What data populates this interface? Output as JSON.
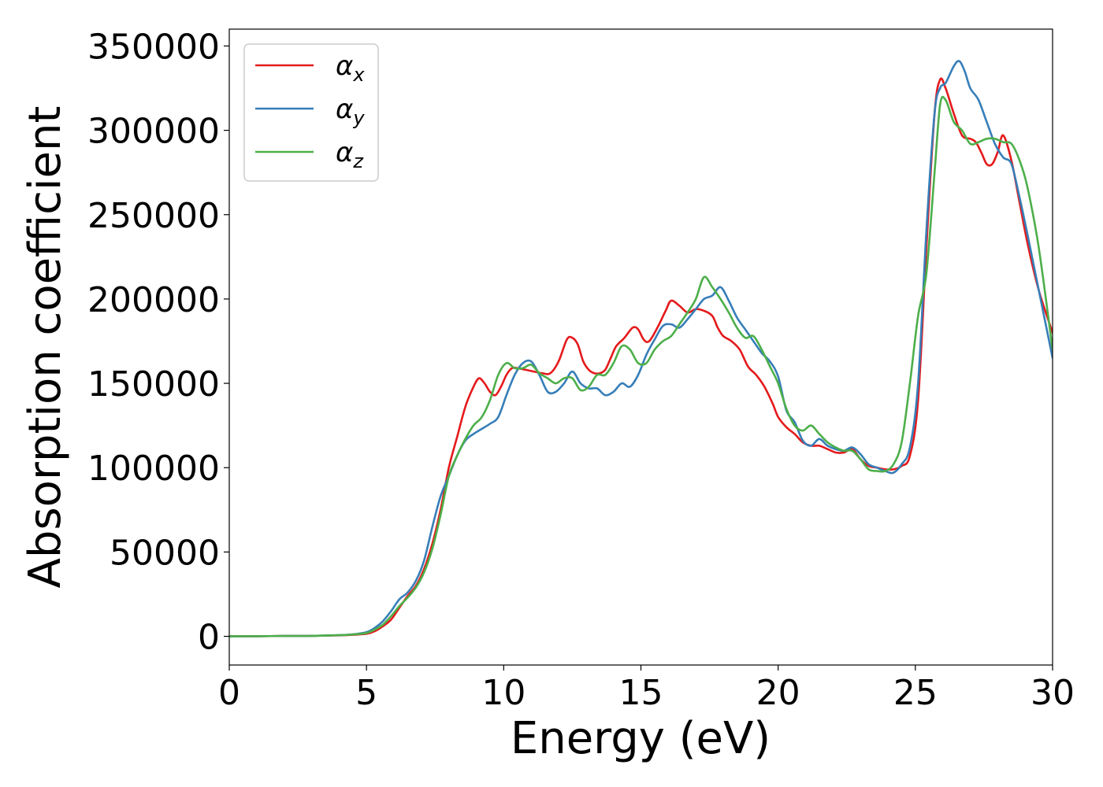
{
  "chart_data": {
    "type": "line",
    "title": "",
    "xlabel": "Energy (eV)",
    "ylabel": "Absorption coefficient",
    "xlim": [
      0,
      30
    ],
    "ylim": [
      -17000,
      360000
    ],
    "xticks": [
      0,
      5,
      10,
      15,
      20,
      25,
      30
    ],
    "yticks": [
      0,
      50000,
      100000,
      150000,
      200000,
      250000,
      300000,
      350000
    ],
    "grid": false,
    "legend_position": "top-left",
    "series": [
      {
        "name": "α",
        "subscript": "x",
        "color": "#e41a1c",
        "x": [
          0,
          1,
          2,
          3,
          4,
          4.5,
          5,
          5.3,
          5.6,
          5.9,
          6.2,
          6.5,
          6.8,
          7.1,
          7.4,
          7.7,
          8,
          8.3,
          8.6,
          8.9,
          9.1,
          9.3,
          9.5,
          9.7,
          9.9,
          10.1,
          10.3,
          10.5,
          10.8,
          11.1,
          11.4,
          11.7,
          12,
          12.3,
          12.5,
          12.7,
          12.9,
          13.1,
          13.3,
          13.5,
          13.7,
          13.9,
          14.1,
          14.4,
          14.7,
          14.9,
          15.1,
          15.3,
          15.6,
          15.9,
          16.1,
          16.4,
          16.7,
          17,
          17.3,
          17.6,
          17.8,
          18,
          18.3,
          18.6,
          18.9,
          19.2,
          19.5,
          19.8,
          20,
          20.3,
          20.6,
          20.9,
          21.2,
          21.5,
          21.8,
          22.1,
          22.4,
          22.7,
          23,
          23.3,
          23.6,
          23.9,
          24.2,
          24.5,
          24.8,
          25.1,
          25.4,
          25.7,
          25.9,
          26.1,
          26.4,
          26.7,
          27,
          27.2,
          27.4,
          27.6,
          27.8,
          28,
          28.2,
          28.5,
          28.8,
          29.1,
          29.5,
          30
        ],
        "values": [
          0,
          100,
          200,
          300,
          600,
          900,
          1500,
          3000,
          6000,
          10000,
          17000,
          24000,
          30000,
          40000,
          55000,
          75000,
          100000,
          118000,
          136000,
          148000,
          153000,
          150000,
          145000,
          143000,
          148000,
          155000,
          159000,
          159000,
          158000,
          157000,
          156000,
          156000,
          163000,
          176000,
          177000,
          173000,
          163000,
          158000,
          156000,
          156000,
          158000,
          165000,
          172000,
          177000,
          183000,
          182000,
          176000,
          175000,
          183000,
          193000,
          199000,
          196000,
          192000,
          194000,
          193000,
          190000,
          183000,
          178000,
          175000,
          170000,
          160000,
          155000,
          148000,
          138000,
          130000,
          124000,
          120000,
          115000,
          113000,
          113000,
          111000,
          109000,
          109000,
          111000,
          105000,
          101000,
          100000,
          99000,
          99000,
          101000,
          107000,
          140000,
          230000,
          310000,
          330000,
          325000,
          310000,
          297000,
          295000,
          293000,
          287000,
          280000,
          280000,
          287000,
          297000,
          282000,
          257000,
          232000,
          205000,
          180000
        ]
      },
      {
        "name": "α",
        "subscript": "y",
        "color": "#377eb8",
        "x": [
          0,
          1,
          2,
          3,
          4,
          4.5,
          5,
          5.3,
          5.6,
          5.9,
          6.2,
          6.5,
          6.8,
          7.1,
          7.4,
          7.7,
          8,
          8.3,
          8.6,
          8.9,
          9.2,
          9.5,
          9.8,
          10.1,
          10.4,
          10.7,
          11,
          11.3,
          11.6,
          11.9,
          12.2,
          12.5,
          12.8,
          13.1,
          13.4,
          13.7,
          14,
          14.3,
          14.6,
          14.9,
          15.2,
          15.5,
          15.8,
          16.1,
          16.4,
          16.7,
          17,
          17.3,
          17.6,
          17.9,
          18.2,
          18.5,
          18.8,
          19.1,
          19.4,
          19.7,
          20,
          20.3,
          20.6,
          20.9,
          21.2,
          21.5,
          21.8,
          22.1,
          22.4,
          22.7,
          23,
          23.3,
          23.6,
          23.9,
          24.2,
          24.5,
          24.8,
          25.1,
          25.4,
          25.7,
          25.9,
          26.1,
          26.4,
          26.6,
          26.8,
          27,
          27.3,
          27.6,
          27.9,
          28.2,
          28.5,
          28.8,
          29.1,
          29.5,
          30
        ],
        "values": [
          0,
          100,
          200,
          300,
          700,
          1200,
          2500,
          5000,
          9000,
          15000,
          22000,
          26000,
          33000,
          45000,
          65000,
          83000,
          95000,
          107000,
          116000,
          120000,
          123000,
          126000,
          130000,
          143000,
          155000,
          162000,
          163000,
          155000,
          145000,
          145000,
          150000,
          157000,
          150000,
          147000,
          147000,
          143000,
          145000,
          150000,
          148000,
          155000,
          167000,
          176000,
          184000,
          185000,
          183000,
          188000,
          194000,
          200000,
          202000,
          207000,
          199000,
          189000,
          182000,
          175000,
          168000,
          163000,
          154000,
          134000,
          127000,
          116000,
          113000,
          117000,
          113000,
          111000,
          110000,
          112000,
          108000,
          102000,
          100000,
          98000,
          97000,
          102000,
          112000,
          150000,
          240000,
          310000,
          325000,
          328000,
          338000,
          341000,
          335000,
          325000,
          318000,
          305000,
          292000,
          284000,
          280000,
          260000,
          237000,
          205000,
          165000
        ]
      },
      {
        "name": "α",
        "subscript": "z",
        "color": "#4daf4a",
        "x": [
          0,
          1,
          2,
          3,
          4,
          4.5,
          5,
          5.3,
          5.6,
          5.9,
          6.2,
          6.5,
          6.8,
          7.1,
          7.4,
          7.7,
          8,
          8.3,
          8.6,
          8.9,
          9.2,
          9.5,
          9.8,
          10.1,
          10.4,
          10.7,
          11,
          11.3,
          11.6,
          11.9,
          12.2,
          12.5,
          12.8,
          13.1,
          13.4,
          13.7,
          14,
          14.3,
          14.6,
          14.9,
          15.2,
          15.5,
          15.8,
          16.1,
          16.4,
          16.7,
          17,
          17.3,
          17.6,
          17.9,
          18.2,
          18.5,
          18.8,
          19.1,
          19.4,
          19.7,
          20,
          20.3,
          20.6,
          20.9,
          21.2,
          21.5,
          21.8,
          22.1,
          22.4,
          22.7,
          23,
          23.3,
          23.6,
          23.9,
          24.2,
          24.5,
          24.8,
          25.1,
          25.4,
          25.7,
          25.9,
          26.1,
          26.4,
          26.7,
          27,
          27.3,
          27.6,
          27.9,
          28.2,
          28.5,
          28.8,
          29.1,
          29.5,
          30
        ],
        "values": [
          0,
          100,
          200,
          300,
          700,
          1100,
          2000,
          4000,
          7000,
          12000,
          18000,
          23000,
          29000,
          38000,
          52000,
          72000,
          95000,
          107000,
          117000,
          125000,
          130000,
          140000,
          155000,
          162000,
          159000,
          159000,
          161000,
          156000,
          153000,
          150000,
          153000,
          153000,
          146000,
          148000,
          155000,
          155000,
          162000,
          172000,
          170000,
          162000,
          162000,
          170000,
          175000,
          178000,
          185000,
          192000,
          200000,
          213000,
          207000,
          200000,
          192000,
          183000,
          177000,
          178000,
          170000,
          160000,
          150000,
          135000,
          125000,
          122000,
          125000,
          120000,
          115000,
          112000,
          110000,
          110000,
          105000,
          99000,
          98000,
          98000,
          102000,
          115000,
          150000,
          190000,
          215000,
          275000,
          315000,
          318000,
          305000,
          300000,
          292000,
          293000,
          295000,
          295000,
          293000,
          292000,
          282000,
          265000,
          230000,
          170000
        ]
      }
    ]
  }
}
